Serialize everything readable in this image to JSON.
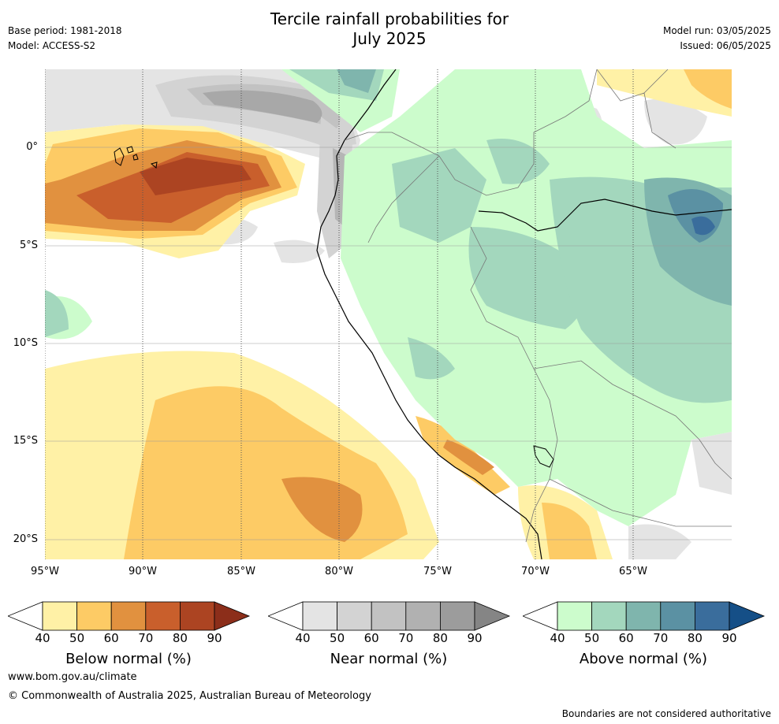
{
  "title_line1": "Tercile rainfall probabilities for",
  "title_line2": "July 2025",
  "base_period": "Base period: 1981-2018",
  "model": "Model: ACCESS-S2",
  "model_run": "Model run: 03/05/2025",
  "issued": "Issued: 06/05/2025",
  "lat_labels": [
    "0°",
    "5°S",
    "10°S",
    "15°S",
    "20°S"
  ],
  "lon_labels": [
    "95°W",
    "90°W",
    "85°W",
    "80°W",
    "75°W",
    "70°W",
    "65°W"
  ],
  "colorbars": [
    {
      "title": "Below normal (%)",
      "ticks": [
        "40",
        "50",
        "60",
        "70",
        "80",
        "90"
      ],
      "colors": [
        "#fff1a6",
        "#fdcb65",
        "#e1913f",
        "#c95f2c",
        "#ac4422",
        "#8c2e1a"
      ]
    },
    {
      "title": "Near normal (%)",
      "ticks": [
        "40",
        "50",
        "60",
        "70",
        "80",
        "90"
      ],
      "colors": [
        "#e4e4e4",
        "#d3d3d3",
        "#c2c2c2",
        "#b1b1b1",
        "#9c9c9c",
        "#858585"
      ]
    },
    {
      "title": "Above normal (%)",
      "ticks": [
        "40",
        "50",
        "60",
        "70",
        "80",
        "90"
      ],
      "colors": [
        "#ccfccc",
        "#a3d7bd",
        "#7fb5ad",
        "#5b91a3",
        "#3a6d9c",
        "#154f87"
      ]
    }
  ],
  "footer_url": "www.bom.gov.au/climate",
  "footer_copyright": "© Commonwealth of Australia 2025, Australian Bureau of Meteorology",
  "footer_note": "Boundaries are not considered authoritative"
}
